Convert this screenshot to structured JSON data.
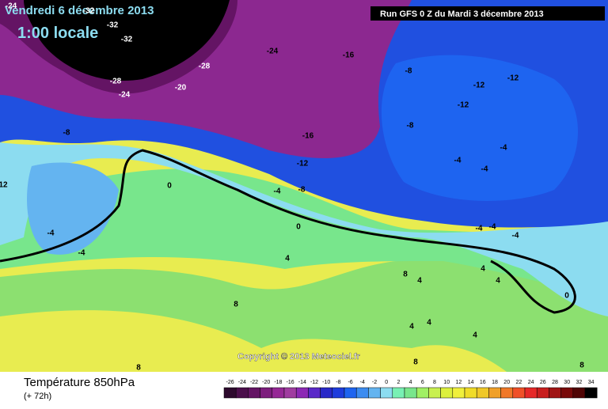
{
  "map": {
    "title": "Vendredi 6 décembre 2013",
    "subtitle": "1:00 locale",
    "run": "Run GFS 0 Z du Mardi 3 décembre 2013",
    "copyright": "Copyright © 2013 Meteociel.fr",
    "contour_labels": [
      -24,
      -32,
      -32,
      -32,
      -28,
      -28,
      -20,
      -24,
      -24,
      -16,
      -8,
      -12,
      -12,
      -12,
      -8,
      -8,
      -16,
      -12,
      -8,
      -4,
      -4,
      -4,
      -4,
      12,
      0,
      0,
      -4,
      -4,
      -4,
      -4,
      -4,
      4,
      8,
      4,
      4,
      4,
      0,
      8,
      4,
      4,
      4,
      8,
      8,
      8
    ]
  },
  "legend": {
    "title": "Température 850hPa",
    "subtitle": "(+ 72h)",
    "values": [
      -26,
      -24,
      -22,
      -20,
      -18,
      -16,
      -14,
      -12,
      -10,
      -8,
      -6,
      -4,
      -2,
      0,
      2,
      4,
      6,
      8,
      10,
      12,
      14,
      16,
      18,
      20,
      22,
      24,
      26,
      28,
      30,
      32,
      34
    ],
    "colors": [
      "#2d0a2d",
      "#4b0f4b",
      "#641464",
      "#7d1e7d",
      "#962896",
      "#a03ca0",
      "#8c28b4",
      "#5a28c8",
      "#2828c8",
      "#1e3cdc",
      "#1e64f0",
      "#3c8cf0",
      "#64b4f0",
      "#8cdcf0",
      "#78f0b4",
      "#78e68c",
      "#a0f064",
      "#c8f050",
      "#dcf03c",
      "#f0f03c",
      "#f0dc28",
      "#f0c828",
      "#f0a028",
      "#f07828",
      "#f05028",
      "#e62828",
      "#c81e1e",
      "#a01414",
      "#780a0a",
      "#500505",
      "#000000"
    ]
  }
}
